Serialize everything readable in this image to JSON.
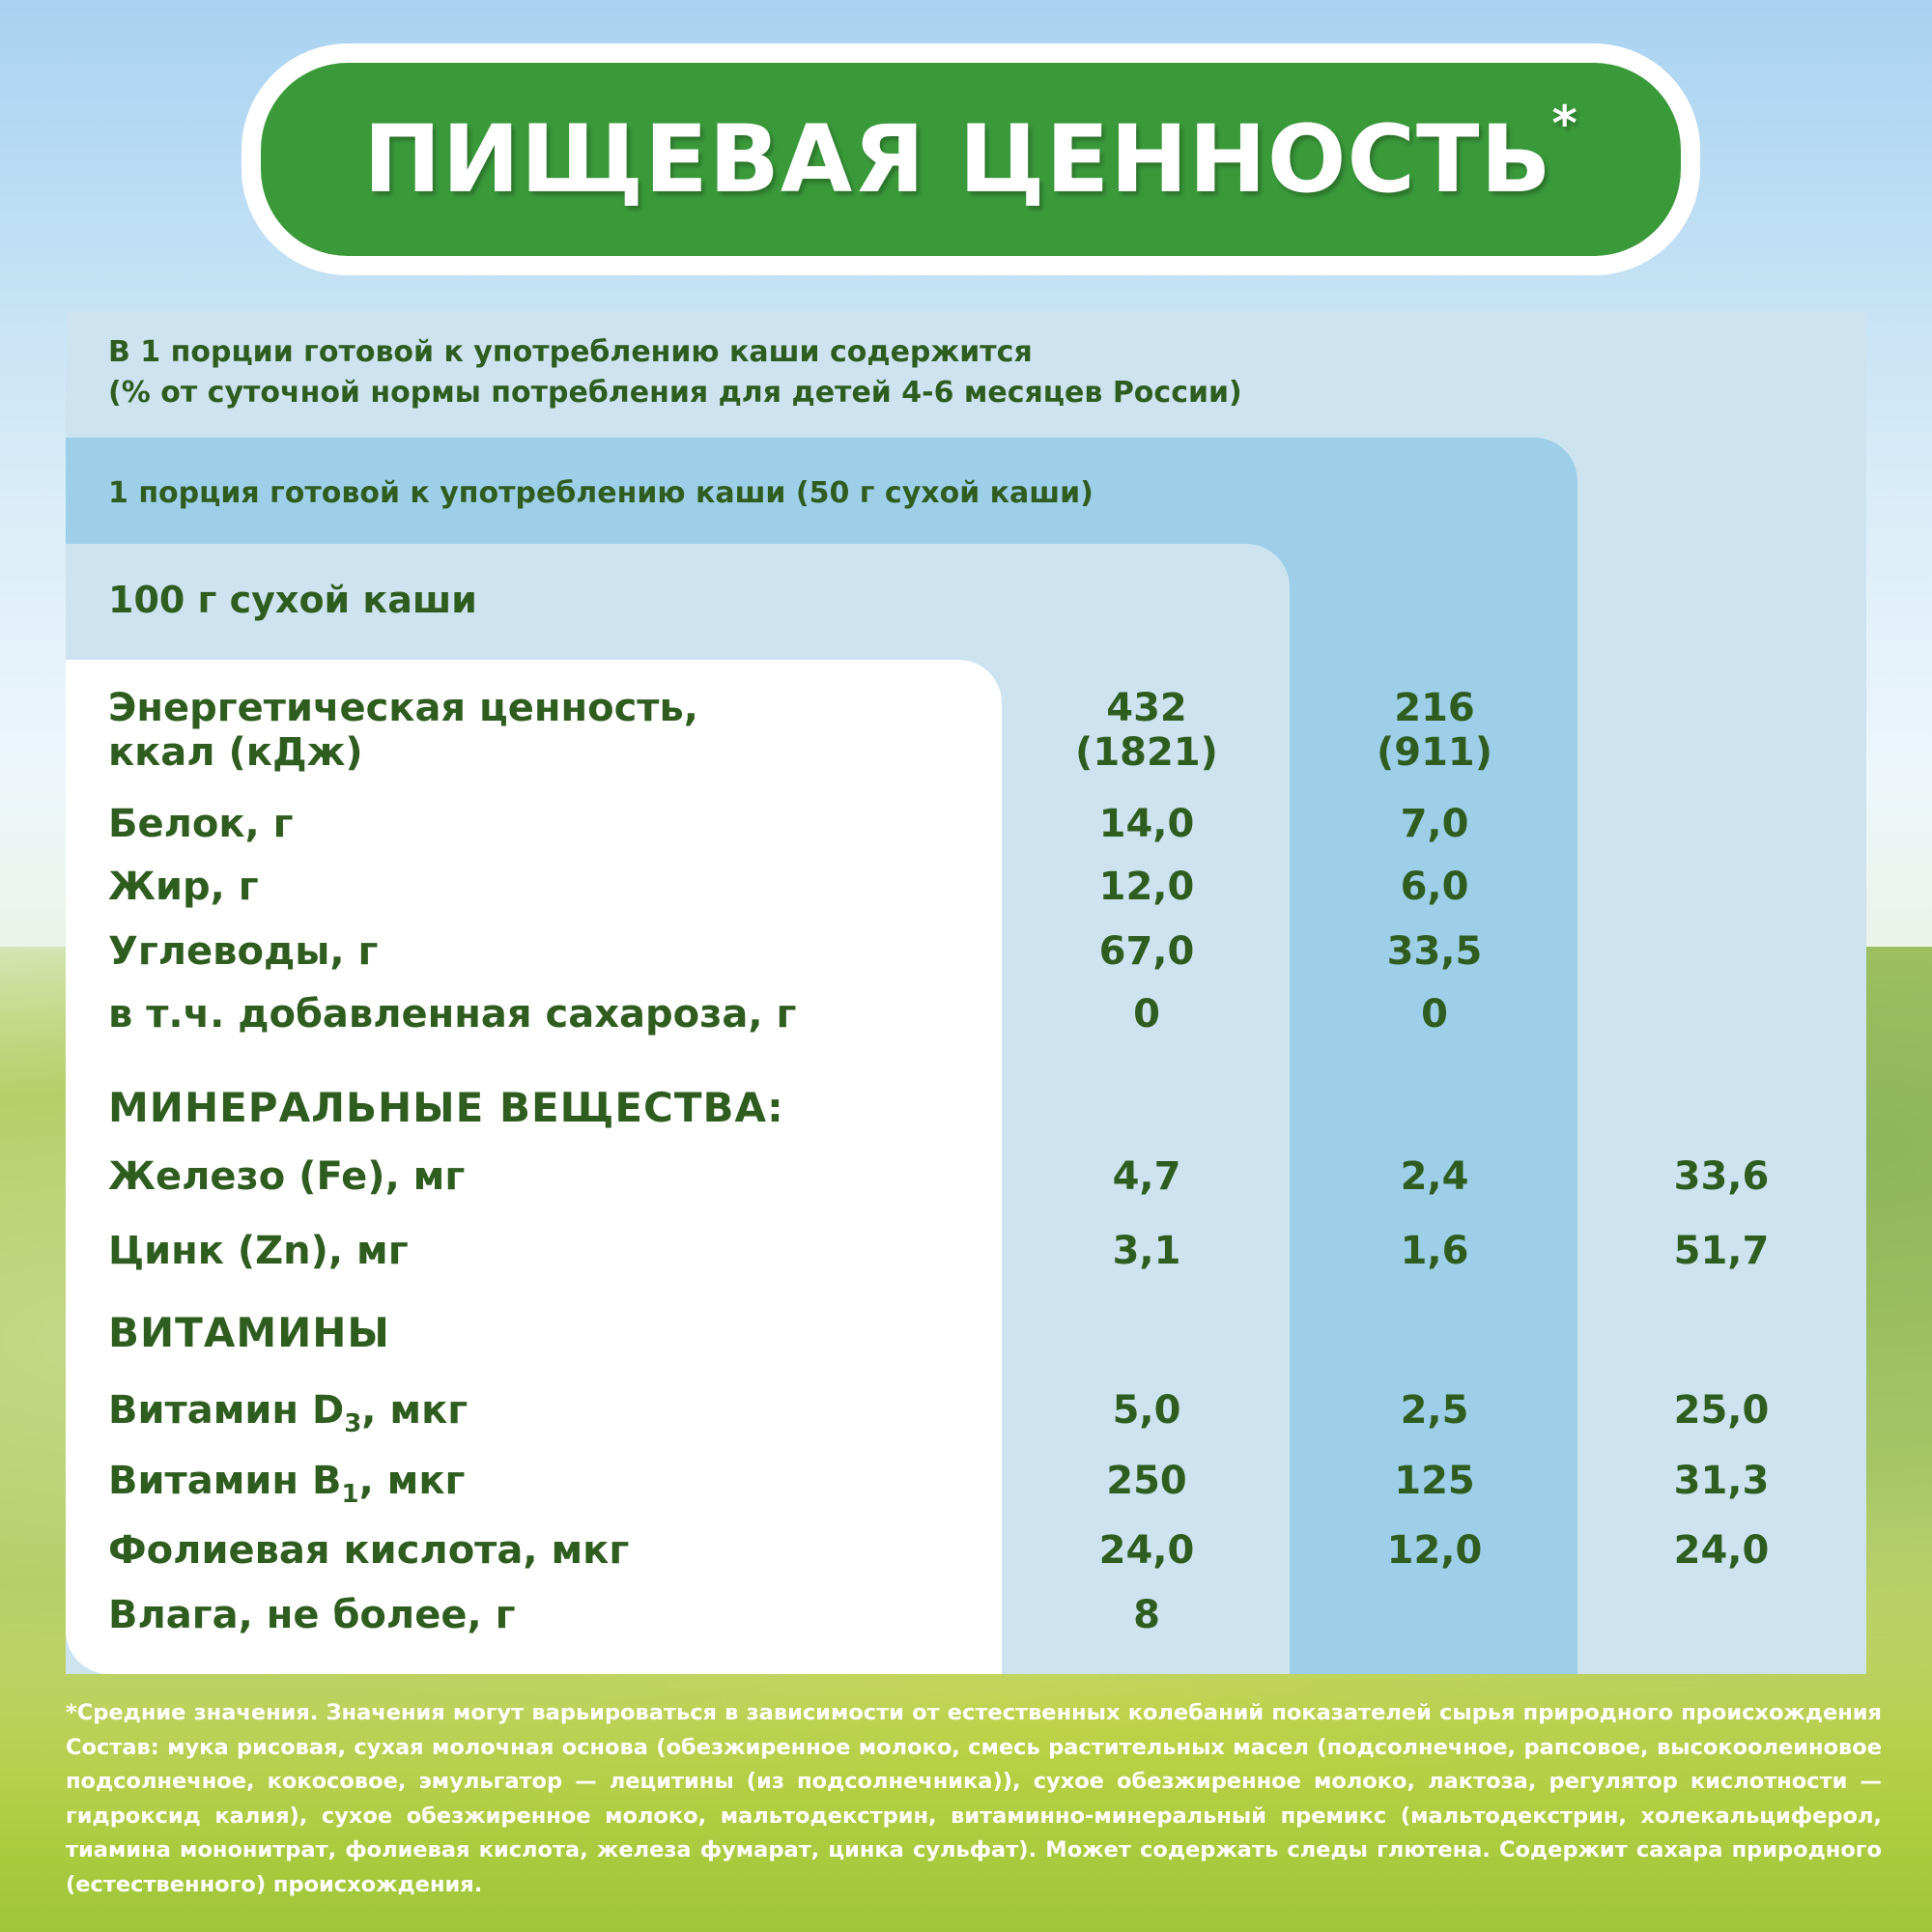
{
  "title": "ПИЩЕВАЯ ЦЕННОСТЬ",
  "title_mark": "*",
  "headers": {
    "daily_norm": [
      "В 1 порции готовой к употреблению каши содержится",
      "(% от суточной нормы потребления для детей 4-6 месяцев России)"
    ],
    "portion": "1 порция готовой к употреблению каши (50 г сухой каши)",
    "per100": "100 г сухой каши"
  },
  "rows": [
    {
      "label": [
        "Энергетическая ценность,",
        "ккал (кДж)"
      ],
      "v100": [
        "432",
        "(1821)"
      ],
      "vportion": [
        "216",
        "(911)"
      ],
      "vnorm": ""
    },
    {
      "label": "Белок, г",
      "v100": "14,0",
      "vportion": "7,0",
      "vnorm": ""
    },
    {
      "label": "Жир, г",
      "v100": "12,0",
      "vportion": "6,0",
      "vnorm": ""
    },
    {
      "label": "Углеводы, г",
      "v100": "67,0",
      "vportion": "33,5",
      "vnorm": ""
    },
    {
      "label": "в т.ч. добавленная сахароза, г",
      "v100": "0",
      "vportion": "0",
      "vnorm": ""
    },
    {
      "label": "Железо (Fe), мг",
      "v100": "4,7",
      "vportion": "2,4",
      "vnorm": "33,6"
    },
    {
      "label": "Цинк (Zn), мг",
      "v100": "3,1",
      "vportion": "1,6",
      "vnorm": "51,7"
    },
    {
      "label": "Витамин D",
      "sub": "3",
      "unit": ", мкг",
      "v100": "5,0",
      "vportion": "2,5",
      "vnorm": "25,0"
    },
    {
      "label": "Витамин B",
      "sub": "1",
      "unit": ", мкг",
      "v100": "250",
      "vportion": "125",
      "vnorm": "31,3"
    },
    {
      "label": "Фолиевая кислота, мкг",
      "v100": "24,0",
      "vportion": "12,0",
      "vnorm": "24,0"
    },
    {
      "label": "Влага, не более, г",
      "v100": "8",
      "vportion": "",
      "vnorm": ""
    }
  ],
  "sections": {
    "minerals": "МИНЕРАЛЬНЫЕ ВЕЩЕСТВА:",
    "vitamins": "ВИТАМИНЫ"
  },
  "footnote": "*Средние значения. Значения могут варьироваться в зависимости от естественных колебаний показателей сырья природного происхождения Состав: мука рисовая, сухая молочная основа (обезжиренное молоко, смесь растительных масел (подсолнечное, рапсовое, высокоолеиновое подсолнечное, кокосовое, эмульгатор — лецитины (из подсолнечника)), сухое обезжиренное молоко, лактоза, регулятор кислотности — гидроксид калия), сухое обезжиренное молоко, мальтодекстрин, витаминно-минеральный премикс (мальтодекстрин, холекальциферол, тиамина мононитрат, фолиевая кислота, железа фумарат, цинка сульфат). Может содержать следы глютена. Содержит сахара природного (естественного) происхождения.",
  "colors": {
    "green": "#3a9a3a",
    "text": "#2f5d20",
    "light_blue": "#cde4f0",
    "mid_blue": "#9dcfe9"
  }
}
